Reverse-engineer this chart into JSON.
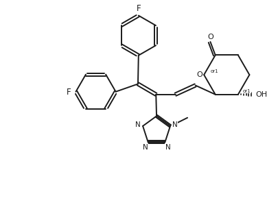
{
  "background_color": "#ffffff",
  "line_color": "#1a1a1a",
  "line_width": 1.4,
  "font_size": 7.5,
  "xlim": [
    0,
    10
  ],
  "ylim": [
    0,
    7.4
  ],
  "figsize": [
    4.06,
    2.99
  ],
  "dpi": 100
}
